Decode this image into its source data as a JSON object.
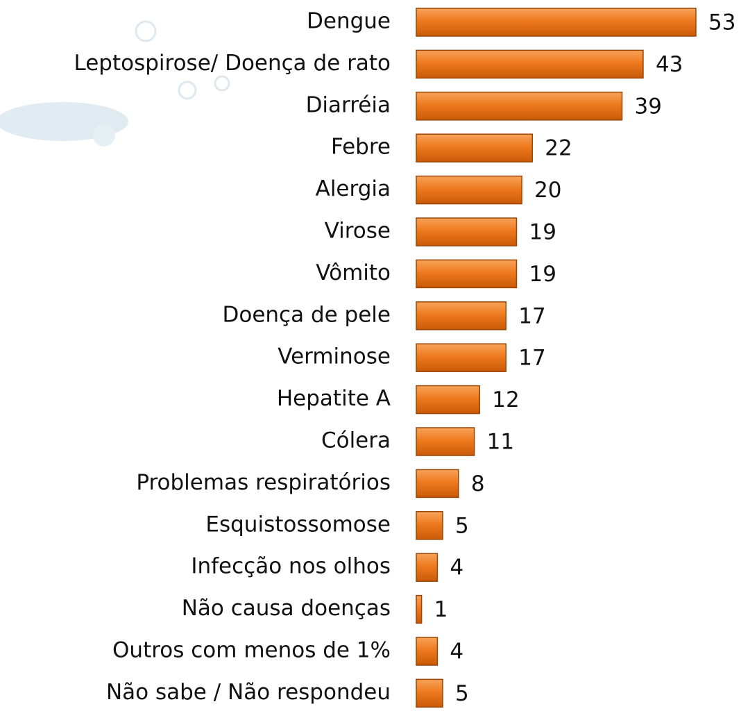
{
  "chart_data": {
    "type": "bar",
    "orientation": "horizontal",
    "color": "#ee7a1e",
    "categories": [
      "Dengue",
      "Leptospirose/ Doença de rato",
      "Diarréia",
      "Febre",
      "Alergia",
      "Virose",
      "Vômito",
      "Doença de pele",
      "Verminose",
      "Hepatite A",
      "Cólera",
      "Problemas respiratórios",
      "Esquistossomose",
      "Infecção nos olhos",
      "Não causa doenças",
      "Outros com menos de 1%",
      "Não sabe / Não respondeu"
    ],
    "values": [
      53,
      43,
      39,
      22,
      20,
      19,
      19,
      17,
      17,
      12,
      11,
      8,
      5,
      4,
      1,
      4,
      5
    ]
  }
}
